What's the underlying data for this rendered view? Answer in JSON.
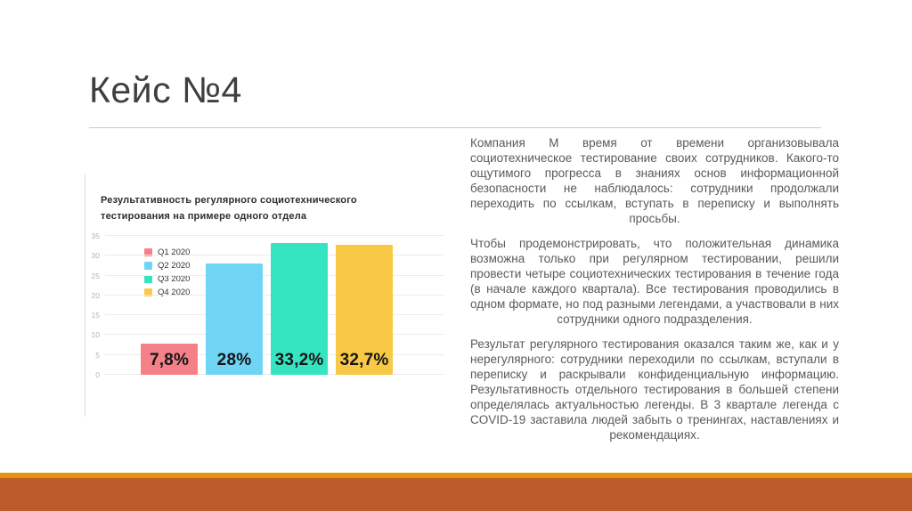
{
  "slide": {
    "title": "Кейс №4",
    "paragraphs": [
      "Компания М время от времени организовывала социотехническое тестирование своих сотрудников. Какого-то ощутимого прогресса в знаниях основ информационной безопасности не наблюдалось: сотрудники продолжали переходить по ссылкам, вступать в переписку и выполнять просьбы.",
      "Чтобы продемонстрировать, что положительная динамика возможна только при регулярном тестировании, решили провести четыре социотехнических тестирования в течение года (в начале каждого квартала). Все тестирования проводились в одном формате, но под разными легендами, а участвовали в них сотрудники одного подразделения.",
      "Результат регулярного тестирования оказался таким же, как и у нерегулярного: сотрудники переходили по ссылкам, вступали в переписку и раскрывали конфиденциальную информацию. Результативность отдельного тестирования в большей степени определялась актуальностью легенды. В 3 квартале легенда с COVID-19 заставила людей забыть о тренингах, наставлениях и рекомендациях."
    ]
  },
  "chart_data": {
    "type": "bar",
    "title": "Результативность регулярного социотехнического тестирования на примере одного отдела",
    "categories": [
      "Q1 2020",
      "Q2 2020",
      "Q3 2020",
      "Q4 2020"
    ],
    "values": [
      7.8,
      28,
      33.2,
      32.7
    ],
    "value_labels": [
      "7,8%",
      "28%",
      "33,2%",
      "32,7%"
    ],
    "colors": [
      "#F58088",
      "#70D4F4",
      "#35E5C2",
      "#F8C945"
    ],
    "xlabel": "",
    "ylabel": "",
    "ylim": [
      0,
      35
    ],
    "yticks": [
      0,
      5,
      10,
      15,
      20,
      25,
      30,
      35
    ],
    "grid": true,
    "legend_position": "top-left"
  },
  "theme": {
    "accent_strip": "#E8930C",
    "accent_band": "#BE5B2B",
    "divider": "#C9C9C9",
    "title_color": "#3F3F3F",
    "body_color": "#5A5A5A"
  }
}
